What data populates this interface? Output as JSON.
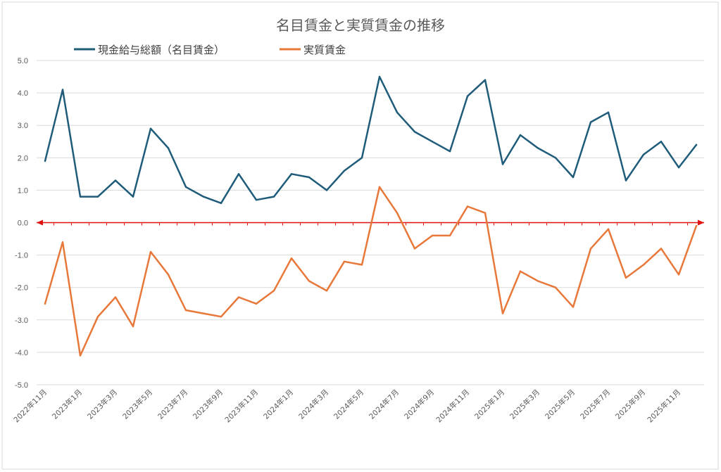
{
  "chart_data": {
    "type": "line",
    "title": "名目賃金と実質賃金の推移",
    "xlabel": "",
    "ylabel": "",
    "ylim": [
      -5.0,
      5.0
    ],
    "ytick_labels": [
      "5.0",
      "4.0",
      "3.0",
      "2.0",
      "1.0",
      "0.0",
      "-1.0",
      "-2.0",
      "-3.0",
      "-4.0",
      "-5.0"
    ],
    "ytick_values": [
      5,
      4,
      3,
      2,
      1,
      0,
      -1,
      -2,
      -3,
      -4,
      -5
    ],
    "grid": true,
    "legend_position": "top-left",
    "x": [
      "2022年11月",
      "2022年12月",
      "2023年1月",
      "2023年2月",
      "2023年3月",
      "2023年4月",
      "2023年5月",
      "2023年6月",
      "2023年7月",
      "2023年8月",
      "2023年9月",
      "2023年10月",
      "2023年11月",
      "2023年12月",
      "2024年1月",
      "2024年2月",
      "2024年3月",
      "2024年4月",
      "2024年5月",
      "2024年6月",
      "2024年7月",
      "2024年8月",
      "2024年9月",
      "2024年10月",
      "2024年11月",
      "2024年12月",
      "2025年1月",
      "2025年2月",
      "2025年3月",
      "2025年4月",
      "2025年5月",
      "2025年6月",
      "2025年7月",
      "2025年8月",
      "2025年9月",
      "2025年10月",
      "2025年11月",
      "2025年12月"
    ],
    "xtick_labels": [
      "2022年11月",
      "2023年1月",
      "2023年3月",
      "2023年5月",
      "2023年7月",
      "2023年9月",
      "2023年11月",
      "2024年1月",
      "2024年3月",
      "2024年5月",
      "2024年7月",
      "2024年9月",
      "2024年11月",
      "2025年1月",
      "2025年3月",
      "2025年5月",
      "2025年7月",
      "2025年9月",
      "2025年11月"
    ],
    "series": [
      {
        "name": "現金給与総額（名目賃金）",
        "color": "#1f5c7a",
        "values": [
          1.9,
          4.1,
          0.8,
          0.8,
          1.3,
          0.8,
          2.9,
          2.3,
          1.1,
          0.8,
          0.6,
          1.5,
          0.7,
          0.8,
          1.5,
          1.4,
          1.0,
          1.6,
          2.0,
          4.5,
          3.4,
          2.8,
          2.5,
          2.2,
          3.9,
          4.4,
          1.8,
          2.7,
          2.3,
          2.0,
          1.4,
          3.1,
          3.4,
          1.3,
          2.1,
          2.5,
          1.7,
          2.4
        ]
      },
      {
        "name": "実質賃金",
        "color": "#e8783a",
        "values": [
          -2.5,
          -0.6,
          -4.1,
          -2.9,
          -2.3,
          -3.2,
          -0.9,
          -1.6,
          -2.7,
          -2.8,
          -2.9,
          -2.3,
          -2.5,
          -2.1,
          -1.1,
          -1.8,
          -2.1,
          -1.2,
          -1.3,
          1.1,
          0.3,
          -0.8,
          -0.4,
          -0.4,
          0.5,
          0.3,
          -2.8,
          -1.5,
          -1.8,
          -2.0,
          -2.6,
          -0.8,
          -0.2,
          -1.7,
          -1.3,
          -0.8,
          -1.6,
          -0.1
        ]
      }
    ],
    "zero_line_color": "#e01010",
    "grid_color": "#d9d9d9",
    "border_color": "#d9d9d9"
  }
}
